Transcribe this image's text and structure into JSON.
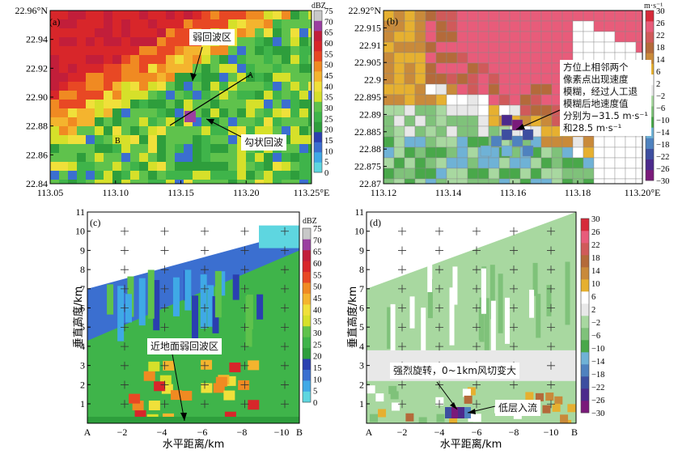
{
  "panels": {
    "a": {
      "label": "(a)",
      "yticks": [
        "22.96°N",
        "22.94",
        "22.92",
        "22.90",
        "22.88",
        "22.86",
        "22.84"
      ],
      "xticks": [
        "113.05",
        "113.10",
        "113.15",
        "113.20",
        "113.25°E"
      ],
      "cbar_unit": "dBZ",
      "cbar_ticks": [
        "75",
        "70",
        "65",
        "60",
        "55",
        "50",
        "45",
        "40",
        "35",
        "30",
        "25",
        "20",
        "15",
        "10",
        "5",
        "0"
      ],
      "annotations": {
        "weak_echo": "弱回波区",
        "hook_echo": "勾状回波"
      },
      "points": {
        "a": "A",
        "b": "B"
      }
    },
    "b": {
      "label": "(b)",
      "yticks": [
        "22.92°N",
        "22.915",
        "22.91",
        "22.905",
        "22.9",
        "22.895",
        "22.89",
        "22.885",
        "22.88",
        "22.875",
        "22.87"
      ],
      "xticks": [
        "113.12",
        "113.14",
        "113.16",
        "113.18",
        "113.20°E"
      ],
      "cbar_unit": "m·s⁻¹",
      "cbar_ticks": [
        "30",
        "26",
        "22",
        "18",
        "14",
        "6",
        "2",
        "−2",
        "−6",
        "−10",
        "−14",
        "−18",
        "−22",
        "−26",
        "−30"
      ],
      "annotation_lines": [
        "方位上相邻两个",
        "像素点出现速度",
        "模糊，经过人工退",
        "模糊后地速度值",
        "分别为−31.5 m·s⁻¹",
        "和28.5 m·s⁻¹"
      ]
    },
    "c": {
      "label": "(c)",
      "yticks": [
        "11",
        "10",
        "9",
        "8",
        "7",
        "6",
        "5",
        "4",
        "3",
        "2",
        "1"
      ],
      "xticks": [
        "A",
        "−2",
        "−4",
        "−6",
        "−8",
        "−10",
        "B"
      ],
      "ylabel": "垂直高度/km",
      "xlabel": "水平距离/km",
      "cbar_unit": "dBZ",
      "cbar_ticks": [
        "75",
        "70",
        "65",
        "60",
        "55",
        "50",
        "45",
        "40",
        "35",
        "30",
        "25",
        "20",
        "15",
        "10",
        "5",
        "0"
      ],
      "annotation": "近地面弱回波区"
    },
    "d": {
      "label": "(d)",
      "yticks": [
        "11",
        "10",
        "9",
        "8",
        "7",
        "6",
        "5",
        "4",
        "3",
        "2",
        "1"
      ],
      "xticks": [
        "A",
        "−2",
        "−4",
        "−6",
        "−8",
        "−10",
        "B"
      ],
      "ylabel": "垂直高度/km",
      "xlabel": "水平距离/km",
      "cbar_ticks": [
        "30",
        "26",
        "22",
        "18",
        "14",
        "10",
        "6",
        "2",
        "−2",
        "−6",
        "−10",
        "−14",
        "−18",
        "−22",
        "−26",
        "−30"
      ],
      "annotation_rotation": "强烈旋转，0~1km风切变大",
      "annotation_inflow": "低层入流"
    }
  },
  "colors": {
    "dbz": [
      "#5ed6e0",
      "#3fa9e6",
      "#3b6fd0",
      "#2a3fb0",
      "#2e9e3c",
      "#3fb44a",
      "#5fc24c",
      "#d6e02a",
      "#f0e03a",
      "#f4b42e",
      "#f08a22",
      "#e84824",
      "#d8262a",
      "#c21e3a",
      "#9b3fa0",
      "#c8c8c8"
    ],
    "vel": [
      "#7a1a7a",
      "#4c2a8c",
      "#3d4ea0",
      "#4f82bf",
      "#6fb2d6",
      "#49a84a",
      "#7fc27a",
      "#a8d8a0",
      "#e8e8e8",
      "#ffffff",
      "#e6b030",
      "#c98a3a",
      "#b46a3a",
      "#d05a5a",
      "#e85c7a",
      "#d62a3a"
    ]
  }
}
